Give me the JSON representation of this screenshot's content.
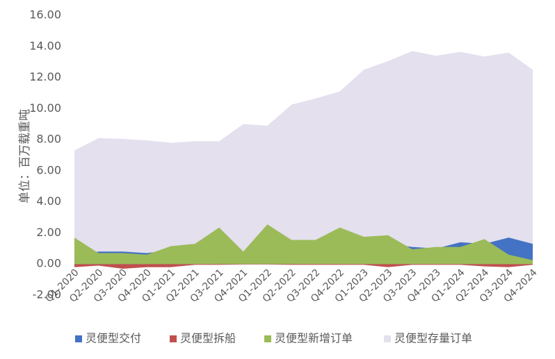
{
  "chart_data": {
    "type": "area",
    "ylabel": "单位：百万载重吨",
    "ylim": [
      -2,
      16
    ],
    "yticks": [
      "-2.00",
      "0.00",
      "2.00",
      "4.00",
      "6.00",
      "8.00",
      "10.00",
      "12.00",
      "14.00",
      "16.00"
    ],
    "categories": [
      "Q1-2020",
      "Q2-2020",
      "Q3-2020",
      "Q4-2020",
      "Q1-2021",
      "Q2-2021",
      "Q3-2021",
      "Q4-2021",
      "Q1-2022",
      "Q2-2022",
      "Q3-2022",
      "Q4-2022",
      "Q1-2023",
      "Q2-2023",
      "Q3-2023",
      "Q4-2023",
      "Q1-2024",
      "Q2-2024",
      "Q3-2024",
      "Q4-2024"
    ],
    "legend_position": "bottom",
    "grid": false,
    "series": [
      {
        "name": "灵便型交付",
        "color": "#4472C4",
        "values": [
          0.5,
          0.8,
          0.8,
          0.7,
          0.9,
          1.1,
          0.9,
          0.6,
          0.9,
          1.1,
          1.2,
          1.3,
          1.1,
          1.3,
          1.1,
          1.0,
          1.4,
          1.3,
          1.7,
          1.3
        ]
      },
      {
        "name": "灵便型拆船",
        "color": "#C0504D",
        "values": [
          -0.2,
          -0.1,
          -0.3,
          -0.2,
          -0.2,
          -0.05,
          -0.05,
          -0.03,
          -0.03,
          -0.05,
          -0.05,
          -0.05,
          -0.05,
          -0.2,
          -0.05,
          -0.05,
          -0.05,
          -0.15,
          -0.2,
          -0.05
        ]
      },
      {
        "name": "灵便型新增订单",
        "color": "#9BBB59",
        "values": [
          1.7,
          0.7,
          0.7,
          0.6,
          1.15,
          1.3,
          2.35,
          0.8,
          2.55,
          1.55,
          1.55,
          2.35,
          1.75,
          1.85,
          0.95,
          1.1,
          1.1,
          1.6,
          0.6,
          0.25
        ]
      },
      {
        "name": "灵便型存量订单",
        "color": "#E4E0EE",
        "values": [
          7.3,
          8.1,
          8.05,
          7.95,
          7.8,
          7.9,
          7.9,
          9.0,
          8.9,
          10.25,
          10.65,
          11.1,
          12.5,
          13.05,
          13.7,
          13.4,
          13.65,
          13.35,
          13.6,
          12.5
        ]
      }
    ]
  }
}
